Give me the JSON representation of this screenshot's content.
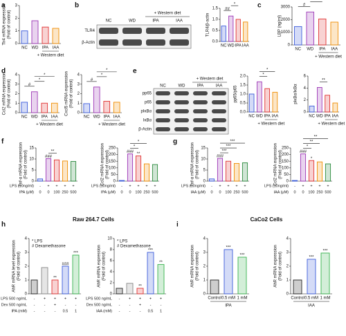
{
  "panel_letters": [
    "a",
    "b",
    "c",
    "d",
    "e",
    "f",
    "g",
    "h",
    "i"
  ],
  "cell_titles": [
    "Raw 264.7 Cells",
    "CaCo2 Cells"
  ],
  "blots": [
    {
      "rows": [
        "TLR4",
        "β-Actin"
      ],
      "lanes": [
        "NC",
        "WD",
        "IPA",
        "IAA"
      ],
      "note": "+ Western diet"
    },
    {
      "rows": [
        "pp65",
        "p65",
        "pIκBα",
        "IκBα",
        "β-Actin"
      ],
      "lanes": [
        "NC",
        "WD",
        "IPA",
        "IAA"
      ],
      "note": "+ Western diet"
    }
  ],
  "chart_data": [
    {
      "type": "bar",
      "ylabel": [
        "Tlr4 mRNA expression",
        "(Fold of control)"
      ],
      "categories": [
        "NC",
        "WD",
        "IPA",
        "IAA"
      ],
      "values": [
        1.0,
        1.8,
        1.3,
        1.2
      ],
      "colors": [
        "#3b5bdb",
        "#9c36b5",
        "#e03131",
        "#f08c00"
      ],
      "ylim": [
        0,
        3
      ],
      "yticks": [
        0,
        1,
        2,
        3
      ],
      "group": "+ Western diet"
    },
    {
      "type": "bar",
      "ylabel": [
        "TLR4/β-actin"
      ],
      "categories": [
        "NC",
        "WD",
        "IPA",
        "IAA"
      ],
      "values": [
        0.7,
        1.15,
        1.0,
        0.88
      ],
      "colors": [
        "#3b5bdb",
        "#9c36b5",
        "#e03131",
        "#f08c00"
      ],
      "ylim": [
        0,
        1.5
      ],
      "yticks": [
        {
          "value": 0,
          "label": "0.0"
        },
        {
          "value": 0.5,
          "label": "0.5"
        },
        {
          "value": 1,
          "label": "1.0"
        },
        {
          "value": 1.5,
          "label": "1.5"
        }
      ],
      "brackets": [
        "##",
        "*"
      ]
    },
    {
      "type": "bar",
      "ylabel": [
        "LBP (ng/ml)"
      ],
      "categories": [
        "NC",
        "WD",
        "IPA",
        "IAA"
      ],
      "values": [
        1450,
        2600,
        2050,
        1800
      ],
      "colors": [
        "#3b5bdb",
        "#9c36b5",
        "#e03131",
        "#f08c00"
      ],
      "ylim": [
        0,
        3000
      ],
      "yticks": [
        0,
        1000,
        2000,
        3000
      ],
      "group": "+ Western diet",
      "brackets": [
        "#",
        "*"
      ]
    },
    {
      "type": "bar",
      "ylabel": [
        "Ccl2 mRNA expression",
        "(Fold of control)"
      ],
      "categories": [
        "NC",
        "WD",
        "IPA",
        "IAA"
      ],
      "values": [
        1.1,
        2.2,
        1.0,
        1.0
      ],
      "colors": [
        "#3b5bdb",
        "#9c36b5",
        "#e03131",
        "#f08c00"
      ],
      "ylim": [
        0,
        4
      ],
      "yticks": [
        0,
        1,
        2,
        3,
        4
      ],
      "group": "+ Western diet",
      "brackets": [
        "#",
        "*",
        "*"
      ]
    },
    {
      "type": "bar",
      "ylabel": [
        "Cxcl5 mRNA expression",
        "(Fold of control)"
      ],
      "categories": [
        "NC",
        "WD",
        "IPA",
        "IAA"
      ],
      "values": [
        0.95,
        2.7,
        1.2,
        1.1
      ],
      "colors": [
        "#3b5bdb",
        "#9c36b5",
        "#e03131",
        "#f08c00"
      ],
      "ylim": [
        0,
        4
      ],
      "yticks": [
        0,
        1,
        2,
        3,
        4
      ],
      "group": "+ Western diet",
      "brackets": [
        "#",
        "*",
        "*"
      ]
    },
    {
      "type": "bar",
      "ylabel": [
        "pp65/p65"
      ],
      "categories": [
        "NC",
        "WD",
        "IPA",
        "IAA"
      ],
      "values": [
        1.0,
        1.68,
        1.3,
        1.1
      ],
      "colors": [
        "#3b5bdb",
        "#9c36b5",
        "#e03131",
        "#f08c00"
      ],
      "ylim": [
        0,
        2
      ],
      "yticks": [
        {
          "value": 0,
          "label": "0.0"
        },
        {
          "value": 0.5,
          "label": "0.5"
        },
        {
          "value": 1,
          "label": "1.0"
        },
        {
          "value": 1.5,
          "label": "1.5"
        },
        {
          "value": 2,
          "label": "2.0"
        }
      ],
      "group": "+ Western diet",
      "brackets": [
        "*",
        "*"
      ]
    },
    {
      "type": "bar",
      "ylabel": [
        "pIκBα/IκBα"
      ],
      "categories": [
        "NC",
        "WD",
        "IPA",
        "IAA"
      ],
      "values": [
        1.0,
        4.1,
        2.8,
        1.5
      ],
      "colors": [
        "#3b5bdb",
        "#9c36b5",
        "#e03131",
        "#f08c00"
      ],
      "ylim": [
        0,
        6
      ],
      "yticks": [
        0,
        2,
        4,
        6
      ],
      "group": "+ Western diet",
      "brackets": [
        "**"
      ]
    },
    {
      "type": "bar",
      "ylabel": [
        "Tnf-α mRNA expression",
        "(Fold of control)"
      ],
      "categories": [
        null,
        null,
        null,
        null,
        null
      ],
      "values": [
        1.0,
        10.2,
        9.6,
        9.1,
        8.9
      ],
      "colors": [
        "#3b5bdb",
        "#9c36b5",
        "#e03131",
        "#f08c00",
        "#2b8a3e"
      ],
      "ylim": [
        0,
        15
      ],
      "yticks": [
        0,
        5,
        10,
        15
      ],
      "sig": [
        null,
        "###",
        null,
        null,
        null
      ],
      "brackets": [
        "**"
      ],
      "rows": [
        {
          "label": "LPS (10ng/ml)",
          "cells": [
            "-",
            "+",
            "+",
            "+",
            "+"
          ]
        },
        {
          "label": "IPA (μM)",
          "cells": [
            "0",
            "0",
            "100",
            "250",
            "500"
          ]
        }
      ]
    },
    {
      "type": "bar",
      "ylabel": [
        "Ccl2 mRNA expression",
        "(Fold of control)"
      ],
      "categories": [
        null,
        null,
        null,
        null,
        null
      ],
      "values": [
        5,
        205,
        190,
        130,
        125
      ],
      "colors": [
        "#3b5bdb",
        "#9c36b5",
        "#e03131",
        "#f08c00",
        "#2b8a3e"
      ],
      "ylim": [
        0,
        250
      ],
      "yticks": [
        0,
        50,
        100,
        150,
        200,
        250
      ],
      "sig": [
        null,
        "###",
        "**",
        null,
        null
      ],
      "brackets": [
        "*",
        "*"
      ],
      "rows": [
        {
          "label": "LPS (10ng/ml)",
          "cells": [
            "-",
            "+",
            "+",
            "+",
            "+"
          ]
        },
        {
          "label": "IPA (μM)",
          "cells": [
            "0",
            "0",
            "100",
            "250",
            "500"
          ]
        }
      ]
    },
    {
      "type": "bar",
      "ylabel": [
        "Tnf-α mRNA expression",
        "(Fold of control)"
      ],
      "categories": [
        null,
        null,
        null,
        null,
        null
      ],
      "values": [
        1.0,
        10.3,
        9.0,
        8.0,
        8.3
      ],
      "colors": [
        "#3b5bdb",
        "#9c36b5",
        "#e03131",
        "#f08c00",
        "#2b8a3e"
      ],
      "ylim": [
        0,
        15
      ],
      "yticks": [
        0,
        5,
        10,
        15
      ],
      "sig": [
        null,
        "###",
        null,
        null,
        null
      ],
      "brackets": [
        "***",
        "***",
        "***"
      ],
      "rows": [
        {
          "label": "LPS (10ng/ml)",
          "cells": [
            "-",
            "+",
            "+",
            "+",
            "+"
          ]
        },
        {
          "label": "IAA (μM)",
          "cells": [
            "0",
            "0",
            "100",
            "250",
            "500"
          ]
        }
      ]
    },
    {
      "type": "bar",
      "ylabel": [
        "Ccl2 mRNA expression",
        "(Fold of control)"
      ],
      "categories": [
        null,
        null,
        null,
        null,
        null
      ],
      "values": [
        5,
        205,
        155,
        145,
        130
      ],
      "colors": [
        "#3b5bdb",
        "#9c36b5",
        "#e03131",
        "#f08c00",
        "#2b8a3e"
      ],
      "ylim": [
        0,
        250
      ],
      "yticks": [
        0,
        50,
        100,
        150,
        200,
        250
      ],
      "sig": [
        null,
        "###",
        "*",
        null,
        null
      ],
      "brackets": [
        "*",
        "**",
        "**"
      ],
      "rows": [
        {
          "label": "LPS (10ng/ml)",
          "cells": [
            "-",
            "+",
            "+",
            "+",
            "+"
          ]
        },
        {
          "label": "IAA (μM)",
          "cells": [
            "0",
            "0",
            "100",
            "250",
            "500"
          ]
        }
      ]
    },
    {
      "type": "bar",
      "ylabel": [
        "AhR mRNA level expression",
        "(Fold of control)"
      ],
      "categories": [
        null,
        null,
        null,
        null,
        null
      ],
      "values": [
        1.0,
        1.9,
        1.0,
        2.0,
        2.8
      ],
      "colors": [
        "#222222",
        "#888888",
        "#e03131",
        "#3b5bdb",
        "#37b24d"
      ],
      "ylim": [
        0,
        4
      ],
      "yticks": [
        0,
        1,
        2,
        3,
        4
      ],
      "sig": [
        null,
        null,
        "**",
        "###",
        "***"
      ],
      "legend": [
        "* LPS",
        "# Dexamethasone"
      ],
      "rows": [
        {
          "label": "LPS 500 ng/mL",
          "cells": [
            "-",
            "+",
            "+",
            "+",
            "+"
          ]
        },
        {
          "label": "Dex 500 ng/mL",
          "cells": [
            "-",
            "-",
            "+",
            "-",
            "-"
          ]
        },
        {
          "label": "IPA (mM)",
          "cells": [
            "-",
            "-",
            "-",
            "0.5",
            "1"
          ]
        }
      ]
    },
    {
      "type": "bar",
      "ylabel": [
        "AhR mRNA expression",
        "(Fold of control)"
      ],
      "categories": [
        null,
        null,
        null,
        null,
        null
      ],
      "values": [
        1.0,
        1.9,
        1.0,
        7.5,
        5.3
      ],
      "colors": [
        "#222222",
        "#888888",
        "#e03131",
        "#3b5bdb",
        "#37b24d"
      ],
      "ylim": [
        0,
        10
      ],
      "yticks": [
        0,
        2,
        4,
        6,
        8,
        10
      ],
      "sig": [
        null,
        null,
        "**",
        "***",
        "**"
      ],
      "legend": [
        "* LPS",
        "# Dexamethasone"
      ],
      "rows": [
        {
          "label": "LPS 500 ng/mL",
          "cells": [
            "-",
            "+",
            "+",
            "+",
            "+"
          ]
        },
        {
          "label": "Dex 500 ng/mL",
          "cells": [
            "-",
            "-",
            "+",
            "-",
            "-"
          ]
        },
        {
          "label": "IAA (mM)",
          "cells": [
            "-",
            "-",
            "-",
            "0.5",
            "1"
          ]
        }
      ]
    },
    {
      "type": "bar",
      "ylabel": [
        "AhR mRNA expression",
        "(Fold of control)"
      ],
      "categories": [
        "Control",
        "0.5 mM",
        "1 mM"
      ],
      "values": [
        1.0,
        3.2,
        2.65
      ],
      "colors": [
        "#222222",
        "#3b5bdb",
        "#37b24d"
      ],
      "ylim": [
        0,
        4
      ],
      "yticks": [
        0,
        1,
        2,
        3,
        4
      ],
      "sig": [
        null,
        "***",
        "***"
      ],
      "group": "IPA"
    },
    {
      "type": "bar",
      "ylabel": [
        "AhR mRNA expression",
        "(Fold of control)"
      ],
      "categories": [
        "Control",
        "0.5 mM",
        "1 mM"
      ],
      "values": [
        1.0,
        2.5,
        2.95
      ],
      "colors": [
        "#222222",
        "#3b5bdb",
        "#37b24d"
      ],
      "ylim": [
        0,
        4
      ],
      "yticks": [
        0,
        1,
        2,
        3,
        4
      ],
      "sig": [
        null,
        "***",
        "***"
      ],
      "group": "IAA"
    }
  ]
}
